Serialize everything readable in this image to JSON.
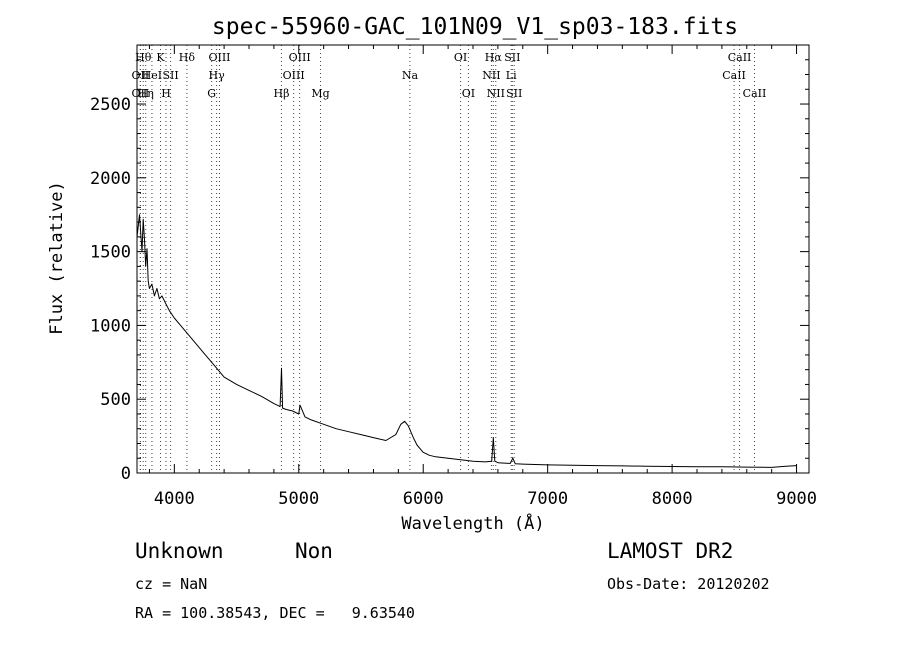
{
  "chart_data": {
    "type": "line",
    "title": "spec-55960-GAC_101N09_V1_sp03-183.fits",
    "xlabel": "Wavelength (Å)",
    "ylabel": "Flux (relative)",
    "xlim": [
      3700,
      9100
    ],
    "ylim": [
      0,
      2900
    ],
    "xticks": [
      4000,
      5000,
      6000,
      7000,
      8000,
      9000
    ],
    "yticks": [
      0,
      500,
      1000,
      1500,
      2000,
      2500
    ],
    "grid": false,
    "series": [
      {
        "x": [
          3700,
          3720,
          3740,
          3750,
          3760,
          3770,
          3780,
          3790,
          3800,
          3820,
          3840,
          3860,
          3880,
          3900,
          3930,
          3960,
          4000,
          4050,
          4100,
          4150,
          4200,
          4250,
          4300,
          4350,
          4400,
          4500,
          4600,
          4700,
          4800,
          4850,
          4861,
          4870,
          4900,
          4950,
          5000,
          5010,
          5050,
          5100,
          5200,
          5300,
          5400,
          5500,
          5600,
          5700,
          5780,
          5820,
          5850,
          5880,
          5900,
          5920,
          5950,
          5980,
          6000,
          6050,
          6100,
          6200,
          6300,
          6400,
          6500,
          6550,
          6563,
          6575,
          6600,
          6700,
          6720,
          6740,
          6800,
          7000,
          7200,
          7400,
          7600,
          7800,
          8000,
          8200,
          8400,
          8600,
          8800,
          8900,
          9000
        ],
        "y": [
          1600,
          1750,
          1500,
          1720,
          1580,
          1400,
          1520,
          1300,
          1250,
          1280,
          1200,
          1250,
          1180,
          1200,
          1150,
          1100,
          1050,
          1000,
          950,
          900,
          850,
          800,
          750,
          700,
          650,
          600,
          560,
          520,
          470,
          450,
          710,
          440,
          430,
          420,
          400,
          460,
          380,
          360,
          330,
          300,
          280,
          260,
          240,
          220,
          260,
          330,
          350,
          320,
          280,
          240,
          190,
          160,
          140,
          120,
          110,
          100,
          90,
          80,
          75,
          80,
          240,
          80,
          70,
          65,
          100,
          62,
          60,
          55,
          52,
          50,
          48,
          46,
          44,
          43,
          42,
          40,
          38,
          45,
          50
        ]
      }
    ],
    "line_markers": [
      {
        "wl": 3727,
        "label": "OII",
        "row": 1
      },
      {
        "wl": 3727,
        "label": "OII",
        "row": 2
      },
      {
        "wl": 3750,
        "label": "Hθ",
        "row": 0
      },
      {
        "wl": 3770,
        "label": "Hη",
        "row": 2
      },
      {
        "wl": 3820,
        "label": "HeI",
        "row": 1
      },
      {
        "wl": 3889,
        "label": "K",
        "row": 0
      },
      {
        "wl": 3933,
        "label": "H",
        "row": 2
      },
      {
        "wl": 3970,
        "label": "SII",
        "row": 1
      },
      {
        "wl": 4101,
        "label": "Hδ",
        "row": 0
      },
      {
        "wl": 4300,
        "label": "G",
        "row": 2
      },
      {
        "wl": 4340,
        "label": "Hγ",
        "row": 1
      },
      {
        "wl": 4363,
        "label": "OIII",
        "row": 0
      },
      {
        "wl": 4861,
        "label": "Hβ",
        "row": 2
      },
      {
        "wl": 4959,
        "label": "OIII",
        "row": 1
      },
      {
        "wl": 5007,
        "label": "OIII",
        "row": 0
      },
      {
        "wl": 5175,
        "label": "Mg",
        "row": 2
      },
      {
        "wl": 5893,
        "label": "Na",
        "row": 1
      },
      {
        "wl": 6300,
        "label": "OI",
        "row": 0
      },
      {
        "wl": 6363,
        "label": "OI",
        "row": 2
      },
      {
        "wl": 6548,
        "label": "NII",
        "row": 1
      },
      {
        "wl": 6563,
        "label": "Hα",
        "row": 0
      },
      {
        "wl": 6583,
        "label": "NII",
        "row": 2
      },
      {
        "wl": 6707,
        "label": "Li",
        "row": 1
      },
      {
        "wl": 6716,
        "label": "SII",
        "row": 0
      },
      {
        "wl": 6731,
        "label": "SII",
        "row": 2
      },
      {
        "wl": 8498,
        "label": "CaII",
        "row": 1
      },
      {
        "wl": 8542,
        "label": "CaII",
        "row": 0
      },
      {
        "wl": 8662,
        "label": "CaII",
        "row": 2
      }
    ]
  },
  "info": {
    "class": "Unknown",
    "subclass": "Non",
    "survey": "LAMOST DR2",
    "cz": "cz = NaN",
    "obs_date": "Obs-Date: 20120202",
    "coords": "RA = 100.38543, DEC =   9.63540"
  }
}
